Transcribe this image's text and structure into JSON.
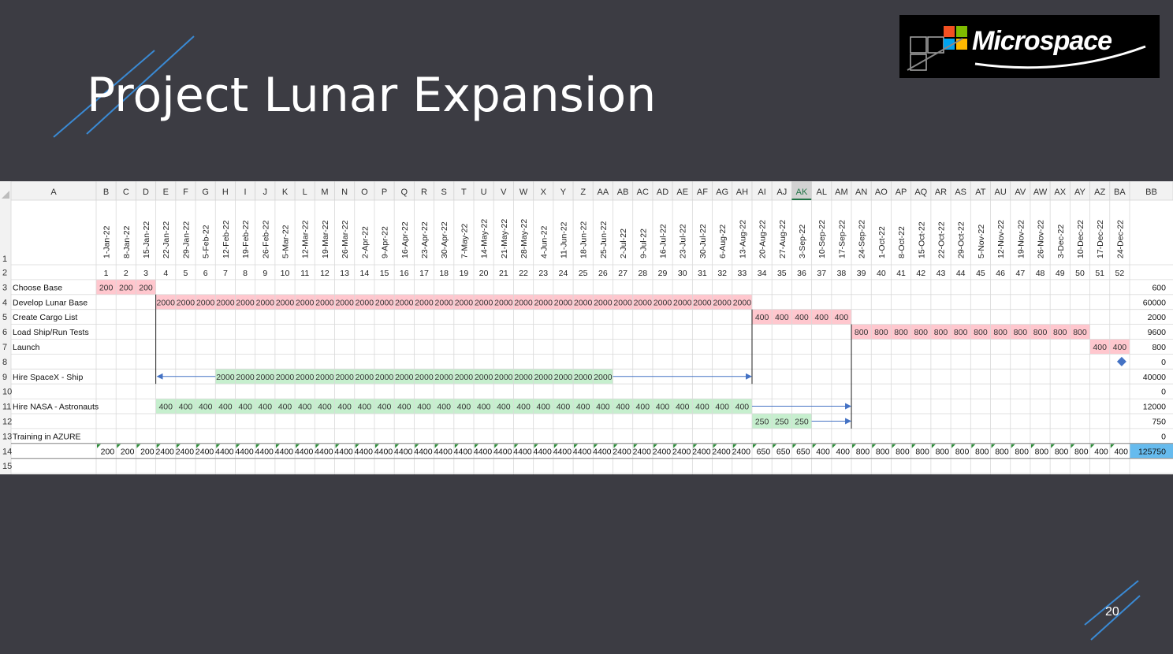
{
  "slide": {
    "title": "Project Lunar Expansion",
    "page_number": "20",
    "logo_text": "Microspace"
  },
  "colors": {
    "background": "#3c3c43",
    "accent_line": "#3a8ad4",
    "red_fill": "#ffc7ce",
    "green_fill": "#c6efce",
    "total_highlight": "#66bbee",
    "arrow": "#4472c4"
  },
  "spreadsheet": {
    "columns": [
      "A",
      "B",
      "C",
      "D",
      "E",
      "F",
      "G",
      "H",
      "I",
      "J",
      "K",
      "L",
      "M",
      "N",
      "O",
      "P",
      "Q",
      "R",
      "S",
      "T",
      "U",
      "V",
      "W",
      "X",
      "Y",
      "Z",
      "AA",
      "AB",
      "AC",
      "AD",
      "AE",
      "AF",
      "AG",
      "AH",
      "AI",
      "AJ",
      "AK",
      "AL",
      "AM",
      "AN",
      "AO",
      "AP",
      "AQ",
      "AR",
      "AS",
      "AT",
      "AU",
      "AV",
      "AW",
      "AX",
      "AY",
      "AZ",
      "BA",
      "BB"
    ],
    "selected_column": "AK",
    "row_numbers": [
      "1",
      "2",
      "3",
      "4",
      "5",
      "6",
      "7",
      "8",
      "9",
      "10",
      "11",
      "12",
      "13",
      "14",
      "15"
    ],
    "dates": [
      "1-Jan-22",
      "8-Jan-22",
      "15-Jan-22",
      "22-Jan-22",
      "29-Jan-22",
      "5-Feb-22",
      "12-Feb-22",
      "19-Feb-22",
      "26-Feb-22",
      "5-Mar-22",
      "12-Mar-22",
      "19-Mar-22",
      "26-Mar-22",
      "2-Apr-22",
      "9-Apr-22",
      "16-Apr-22",
      "23-Apr-22",
      "30-Apr-22",
      "7-May-22",
      "14-May-22",
      "21-May-22",
      "28-May-22",
      "4-Jun-22",
      "11-Jun-22",
      "18-Jun-22",
      "25-Jun-22",
      "2-Jul-22",
      "9-Jul-22",
      "16-Jul-22",
      "23-Jul-22",
      "30-Jul-22",
      "6-Aug-22",
      "13-Aug-22",
      "20-Aug-22",
      "27-Aug-22",
      "3-Sep-22",
      "10-Sep-22",
      "17-Sep-22",
      "24-Sep-22",
      "1-Oct-22",
      "8-Oct-22",
      "15-Oct-22",
      "22-Oct-22",
      "29-Oct-22",
      "5-Nov-22",
      "12-Nov-22",
      "19-Nov-22",
      "26-Nov-22",
      "3-Dec-22",
      "10-Dec-22",
      "17-Dec-22",
      "24-Dec-22"
    ],
    "week_numbers": [
      "1",
      "2",
      "3",
      "4",
      "5",
      "6",
      "7",
      "8",
      "9",
      "10",
      "11",
      "12",
      "13",
      "14",
      "15",
      "16",
      "17",
      "18",
      "19",
      "20",
      "21",
      "22",
      "23",
      "24",
      "25",
      "26",
      "27",
      "28",
      "29",
      "30",
      "31",
      "32",
      "33",
      "34",
      "35",
      "36",
      "37",
      "38",
      "39",
      "40",
      "41",
      "42",
      "43",
      "44",
      "45",
      "46",
      "47",
      "48",
      "49",
      "50",
      "51",
      "52"
    ],
    "tasks": [
      {
        "row": "3",
        "name": "Choose Base",
        "start_week": 1,
        "end_week": 3,
        "value": "200",
        "fill": "red",
        "total": "600"
      },
      {
        "row": "4",
        "name": "Develop Lunar Base",
        "start_week": 4,
        "end_week": 33,
        "value": "2000",
        "fill": "red",
        "total": "60000"
      },
      {
        "row": "5",
        "name": "Create Cargo List",
        "start_week": 34,
        "end_week": 38,
        "value": "400",
        "fill": "red",
        "total": "2000"
      },
      {
        "row": "6",
        "name": "Load Ship/Run Tests",
        "start_week": 39,
        "end_week": 50,
        "value": "800",
        "fill": "red",
        "total": "9600"
      },
      {
        "row": "7",
        "name": "Launch",
        "start_week": 51,
        "end_week": 52,
        "value": "400",
        "fill": "red",
        "total": "800"
      },
      {
        "row": "8",
        "name": "",
        "total": "0",
        "milestone_at_week": 52
      },
      {
        "row": "9",
        "name": "Hire SpaceX - Ship",
        "start_week": 7,
        "end_week": 26,
        "value": "2000",
        "fill": "green",
        "total": "40000"
      },
      {
        "row": "10",
        "name": "",
        "total": "0"
      },
      {
        "row": "11",
        "name": "Hire NASA - Astronauts",
        "start_week": 4,
        "end_week": 33,
        "value": "400",
        "fill": "green",
        "total": "12000"
      },
      {
        "row": "12",
        "name": "",
        "start_week": 34,
        "end_week": 36,
        "value": "250",
        "fill": "green",
        "total": "750"
      },
      {
        "row": "13",
        "name": "Training in AZURE",
        "total": "0"
      }
    ],
    "weekly_totals": [
      "200",
      "200",
      "200",
      "2400",
      "2400",
      "2400",
      "4400",
      "4400",
      "4400",
      "4400",
      "4400",
      "4400",
      "4400",
      "4400",
      "4400",
      "4400",
      "4400",
      "4400",
      "4400",
      "4400",
      "4400",
      "4400",
      "4400",
      "4400",
      "4400",
      "4400",
      "2400",
      "2400",
      "2400",
      "2400",
      "2400",
      "2400",
      "2400",
      "650",
      "650",
      "650",
      "400",
      "400",
      "800",
      "800",
      "800",
      "800",
      "800",
      "800",
      "800",
      "800",
      "800",
      "800",
      "800",
      "800",
      "400",
      "400"
    ],
    "grand_total": "125750"
  }
}
